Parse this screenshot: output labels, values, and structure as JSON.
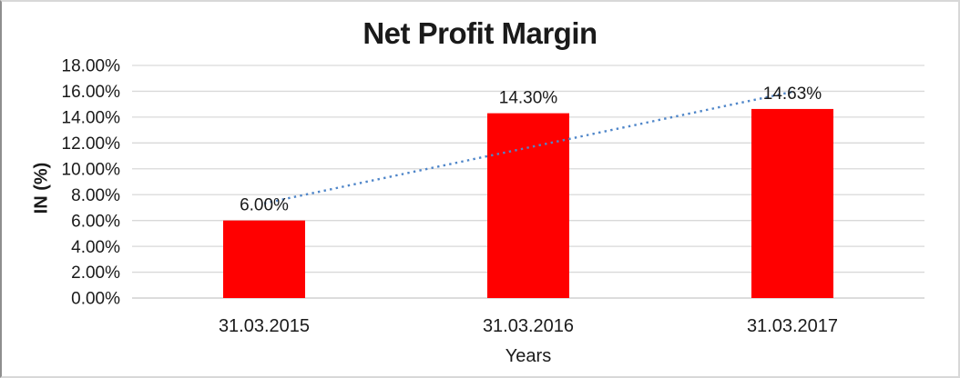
{
  "chart_data": {
    "type": "bar",
    "title": "Net Profit Margin",
    "xlabel": "Years",
    "ylabel": "IN (%)",
    "categories": [
      "31.03.2015",
      "31.03.2016",
      "31.03.2017"
    ],
    "values": [
      6.0,
      14.3,
      14.63
    ],
    "data_labels": [
      "6.00%",
      "14.30%",
      "14.63%"
    ],
    "ylim": [
      0,
      18
    ],
    "ytick_step": 2,
    "ytick_labels": [
      "0.00%",
      "2.00%",
      "4.00%",
      "6.00%",
      "8.00%",
      "10.00%",
      "12.00%",
      "14.00%",
      "16.00%",
      "18.00%"
    ],
    "grid": true,
    "legend": "none",
    "trendline": {
      "type": "linear",
      "style": "dotted"
    },
    "colors": {
      "bar": "#FF0000",
      "trendline": "#4F86C9",
      "gridline": "#D9D9D9",
      "axis_line": "#C6C6C6",
      "text": "#1A1A1A"
    }
  }
}
